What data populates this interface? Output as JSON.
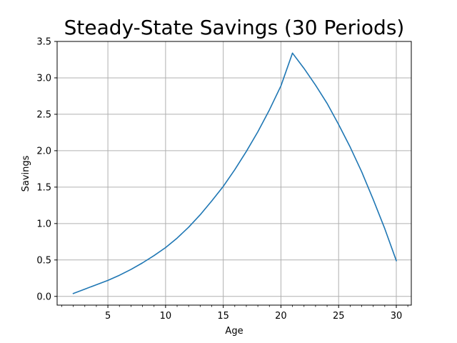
{
  "chart_data": {
    "type": "line",
    "title": "Steady-State Savings (30 Periods)",
    "xlabel": "Age",
    "ylabel": "Savings",
    "xlim": [
      0.6,
      31.3
    ],
    "ylim": [
      -0.12,
      3.5
    ],
    "grid": true,
    "line_color": "#1f77b4",
    "grid_color": "#b0b0b0",
    "xticks": [
      5,
      10,
      15,
      20,
      25,
      30
    ],
    "xtick_labels": [
      "5",
      "10",
      "15",
      "20",
      "25",
      "30"
    ],
    "x_minor_ticks": [
      1,
      2,
      3,
      4,
      6,
      7,
      8,
      9,
      11,
      12,
      13,
      14,
      16,
      17,
      18,
      19,
      21,
      22,
      23,
      24,
      26,
      27,
      28,
      29,
      31
    ],
    "yticks": [
      0.0,
      0.5,
      1.0,
      1.5,
      2.0,
      2.5,
      3.0,
      3.5
    ],
    "ytick_labels": [
      "0.0",
      "0.5",
      "1.0",
      "1.5",
      "2.0",
      "2.5",
      "3.0",
      "3.5"
    ],
    "series": [
      {
        "x": [
          2,
          3,
          4,
          5,
          6,
          7,
          8,
          9,
          10,
          11,
          12,
          13,
          14,
          15,
          16,
          17,
          18,
          19,
          20,
          21,
          22,
          23,
          24,
          25,
          26,
          27,
          28,
          29,
          30
        ],
        "values": [
          0.04,
          0.1,
          0.16,
          0.22,
          0.29,
          0.37,
          0.46,
          0.56,
          0.67,
          0.8,
          0.95,
          1.12,
          1.31,
          1.51,
          1.74,
          1.99,
          2.26,
          2.56,
          2.89,
          3.34,
          3.13,
          2.9,
          2.65,
          2.36,
          2.05,
          1.71,
          1.33,
          0.93,
          0.49
        ]
      }
    ]
  }
}
